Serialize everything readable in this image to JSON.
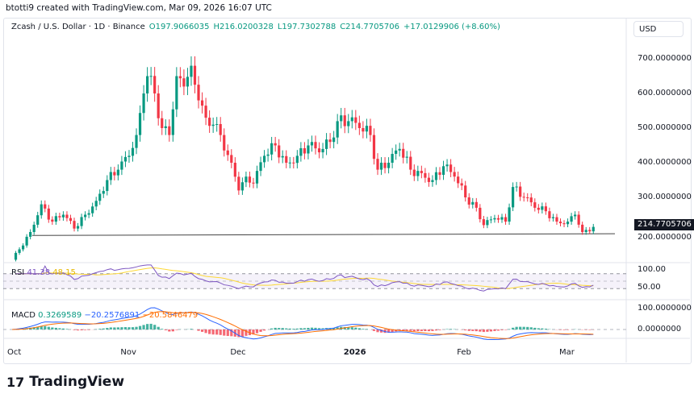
{
  "header": "btotti9 created with TradingView.com, Mar 09, 2026 16:07 UTC",
  "legend": {
    "symbol": "Zcash / U.S. Dollar · 1D · Binance",
    "open": "O197.9066035",
    "high": "H216.0200328",
    "low": "L197.7302788",
    "close": "C214.7705706",
    "change": "+17.0129906 (+8.60%)"
  },
  "currency": "USD",
  "last_price": "214.7705706",
  "rsi": {
    "label": "RSI",
    "value": "41.38",
    "ma": "48.15",
    "axis": [
      "100.00",
      "50.00"
    ]
  },
  "macd": {
    "label": "MACD",
    "hist": "0.3269589",
    "macd": "−20.2576891",
    "signal": "−20.5846479",
    "axis": [
      "100.0000000",
      "0.0000000"
    ]
  },
  "logo": "TradingView",
  "colors": {
    "up": "#089981",
    "down": "#f23645",
    "rsi": "#7e57c2",
    "rsi_ma": "#fdd835",
    "macd": "#2962ff",
    "signal": "#ff6d00"
  },
  "chart_data": {
    "type": "candlestick",
    "title": "Zcash / U.S. Dollar · 1D · Binance",
    "y_ticks": [
      "700.0000000",
      "600.0000000",
      "500.0000000",
      "400.0000000",
      "300.0000000",
      "200.0000000"
    ],
    "x_ticks": [
      "Oct",
      "Nov",
      "Dec",
      "2026",
      "Feb",
      "Mar"
    ],
    "ylim": [
      100,
      800
    ],
    "days": [
      0,
      2,
      5,
      8,
      11,
      14,
      17,
      20,
      23,
      26,
      29,
      32,
      34,
      36,
      37,
      39,
      41,
      43,
      45,
      47,
      49,
      51,
      53,
      55,
      57,
      60,
      62,
      64,
      66,
      69,
      72,
      75,
      78,
      81,
      84,
      87,
      89,
      92,
      95,
      98,
      100,
      103,
      106,
      109,
      112,
      115,
      118,
      121,
      124,
      127,
      129,
      132,
      135,
      137,
      140,
      143,
      146,
      149,
      152,
      154,
      156,
      159
    ],
    "close": [
      120,
      150,
      200,
      280,
      230,
      250,
      210,
      250,
      290,
      350,
      380,
      420,
      480,
      600,
      650,
      600,
      500,
      480,
      650,
      620,
      680,
      580,
      530,
      510,
      480,
      400,
      320,
      360,
      340,
      420,
      450,
      400,
      420,
      450,
      430,
      460,
      520,
      520,
      500,
      480,
      380,
      400,
      440,
      380,
      370,
      350,
      390,
      360,
      300,
      270,
      220,
      240,
      230,
      330,
      300,
      270,
      260,
      230,
      230,
      250,
      200,
      214.77
    ],
    "support_line": [
      190,
      195
    ]
  }
}
